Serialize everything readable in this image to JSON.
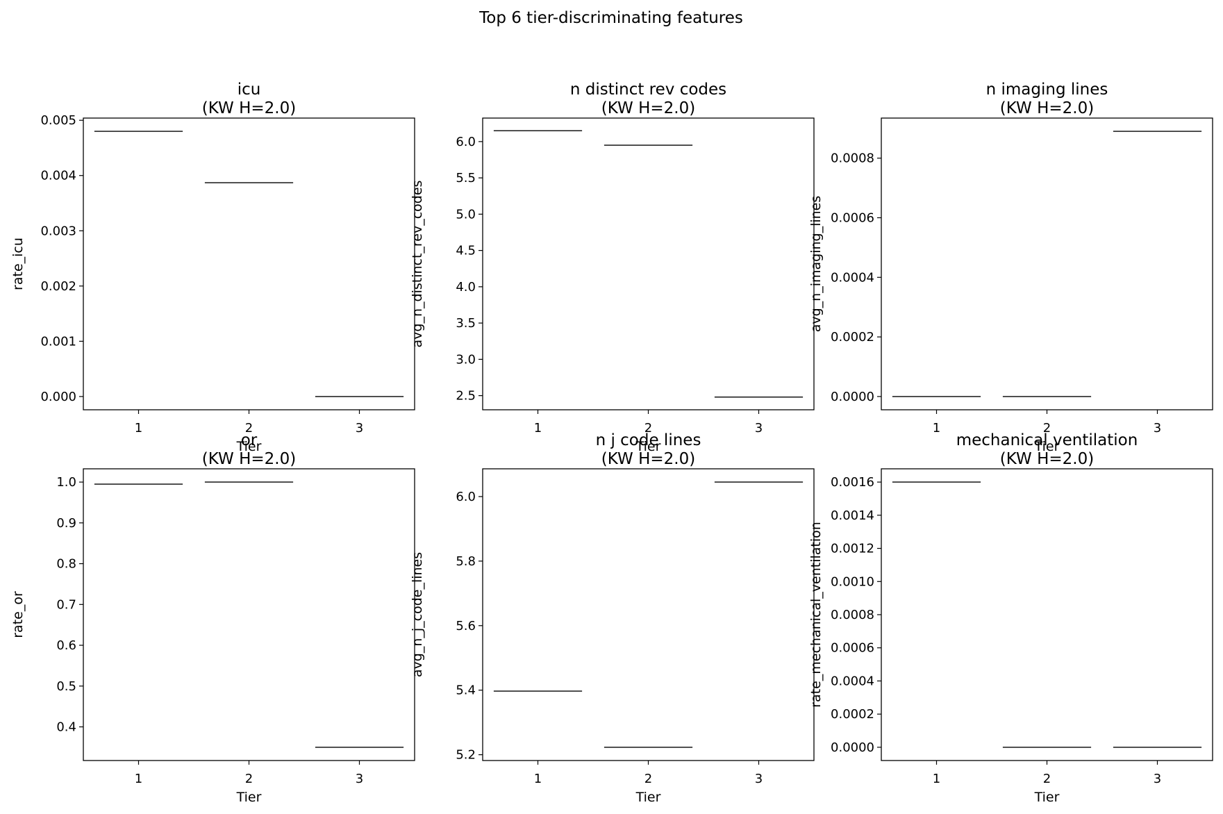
{
  "figure": {
    "title": "Top 6 tier-discriminating features"
  },
  "chart_data": [
    {
      "type": "box",
      "title": "icu",
      "subtitle": "(KW H=2.0)",
      "xlabel": "Tier",
      "ylabel": "rate_icu",
      "categories": [
        "1",
        "2",
        "3"
      ],
      "values": [
        0.0048,
        0.00387,
        0.0
      ],
      "yticks": [
        0.0,
        0.001,
        0.002,
        0.003,
        0.004,
        0.005
      ],
      "ytick_labels": [
        "0.000",
        "0.001",
        "0.002",
        "0.003",
        "0.004",
        "0.005"
      ],
      "ylim": [
        -0.00024,
        0.00504
      ]
    },
    {
      "type": "box",
      "title": "n distinct rev codes",
      "subtitle": "(KW H=2.0)",
      "xlabel": "Tier",
      "ylabel": "avg_n_distinct_rev_codes",
      "categories": [
        "1",
        "2",
        "3"
      ],
      "values": [
        6.15,
        5.95,
        2.48
      ],
      "yticks": [
        2.5,
        3.0,
        3.5,
        4.0,
        4.5,
        5.0,
        5.5,
        6.0
      ],
      "ytick_labels": [
        "2.5",
        "3.0",
        "3.5",
        "4.0",
        "4.5",
        "5.0",
        "5.5",
        "6.0"
      ],
      "ylim": [
        2.305,
        6.324
      ]
    },
    {
      "type": "box",
      "title": "n imaging lines",
      "subtitle": "(KW H=2.0)",
      "xlabel": "Tier",
      "ylabel": "avg_n_imaging_lines",
      "categories": [
        "1",
        "2",
        "3"
      ],
      "values": [
        0.0,
        0.0,
        0.00089
      ],
      "yticks": [
        0.0,
        0.0002,
        0.0004,
        0.0006,
        0.0008
      ],
      "ytick_labels": [
        "0.0000",
        "0.0002",
        "0.0004",
        "0.0006",
        "0.0008"
      ],
      "ylim": [
        -4.45e-05,
        0.0009345
      ]
    },
    {
      "type": "box",
      "title": "or",
      "subtitle": "(KW H=2.0)",
      "xlabel": "Tier",
      "ylabel": "rate_or",
      "categories": [
        "1",
        "2",
        "3"
      ],
      "values": [
        0.995,
        1.0,
        0.35
      ],
      "yticks": [
        0.4,
        0.5,
        0.6,
        0.7,
        0.8,
        0.9,
        1.0
      ],
      "ytick_labels": [
        "0.4",
        "0.5",
        "0.6",
        "0.7",
        "0.8",
        "0.9",
        "1.0"
      ],
      "ylim": [
        0.3175,
        1.0325
      ]
    },
    {
      "type": "box",
      "title": "n j code lines",
      "subtitle": "(KW H=2.0)",
      "xlabel": "Tier",
      "ylabel": "avg_n_j_code_lines",
      "categories": [
        "1",
        "2",
        "3"
      ],
      "values": [
        5.397,
        5.223,
        6.045
      ],
      "yticks": [
        5.2,
        5.4,
        5.6,
        5.8,
        6.0
      ],
      "ytick_labels": [
        "5.2",
        "5.4",
        "5.6",
        "5.8",
        "6.0"
      ],
      "ylim": [
        5.182,
        6.086
      ]
    },
    {
      "type": "box",
      "title": "mechanical ventilation",
      "subtitle": "(KW H=2.0)",
      "xlabel": "Tier",
      "ylabel": "rate_mechanical_ventilation",
      "categories": [
        "1",
        "2",
        "3"
      ],
      "values": [
        0.0016,
        0.0,
        0.0
      ],
      "yticks": [
        0.0,
        0.0002,
        0.0004,
        0.0006,
        0.0008,
        0.001,
        0.0012,
        0.0014,
        0.0016
      ],
      "ytick_labels": [
        "0.0000",
        "0.0002",
        "0.0004",
        "0.0006",
        "0.0008",
        "0.0010",
        "0.0012",
        "0.0014",
        "0.0016"
      ],
      "ylim": [
        -8e-05,
        0.00168
      ]
    }
  ]
}
